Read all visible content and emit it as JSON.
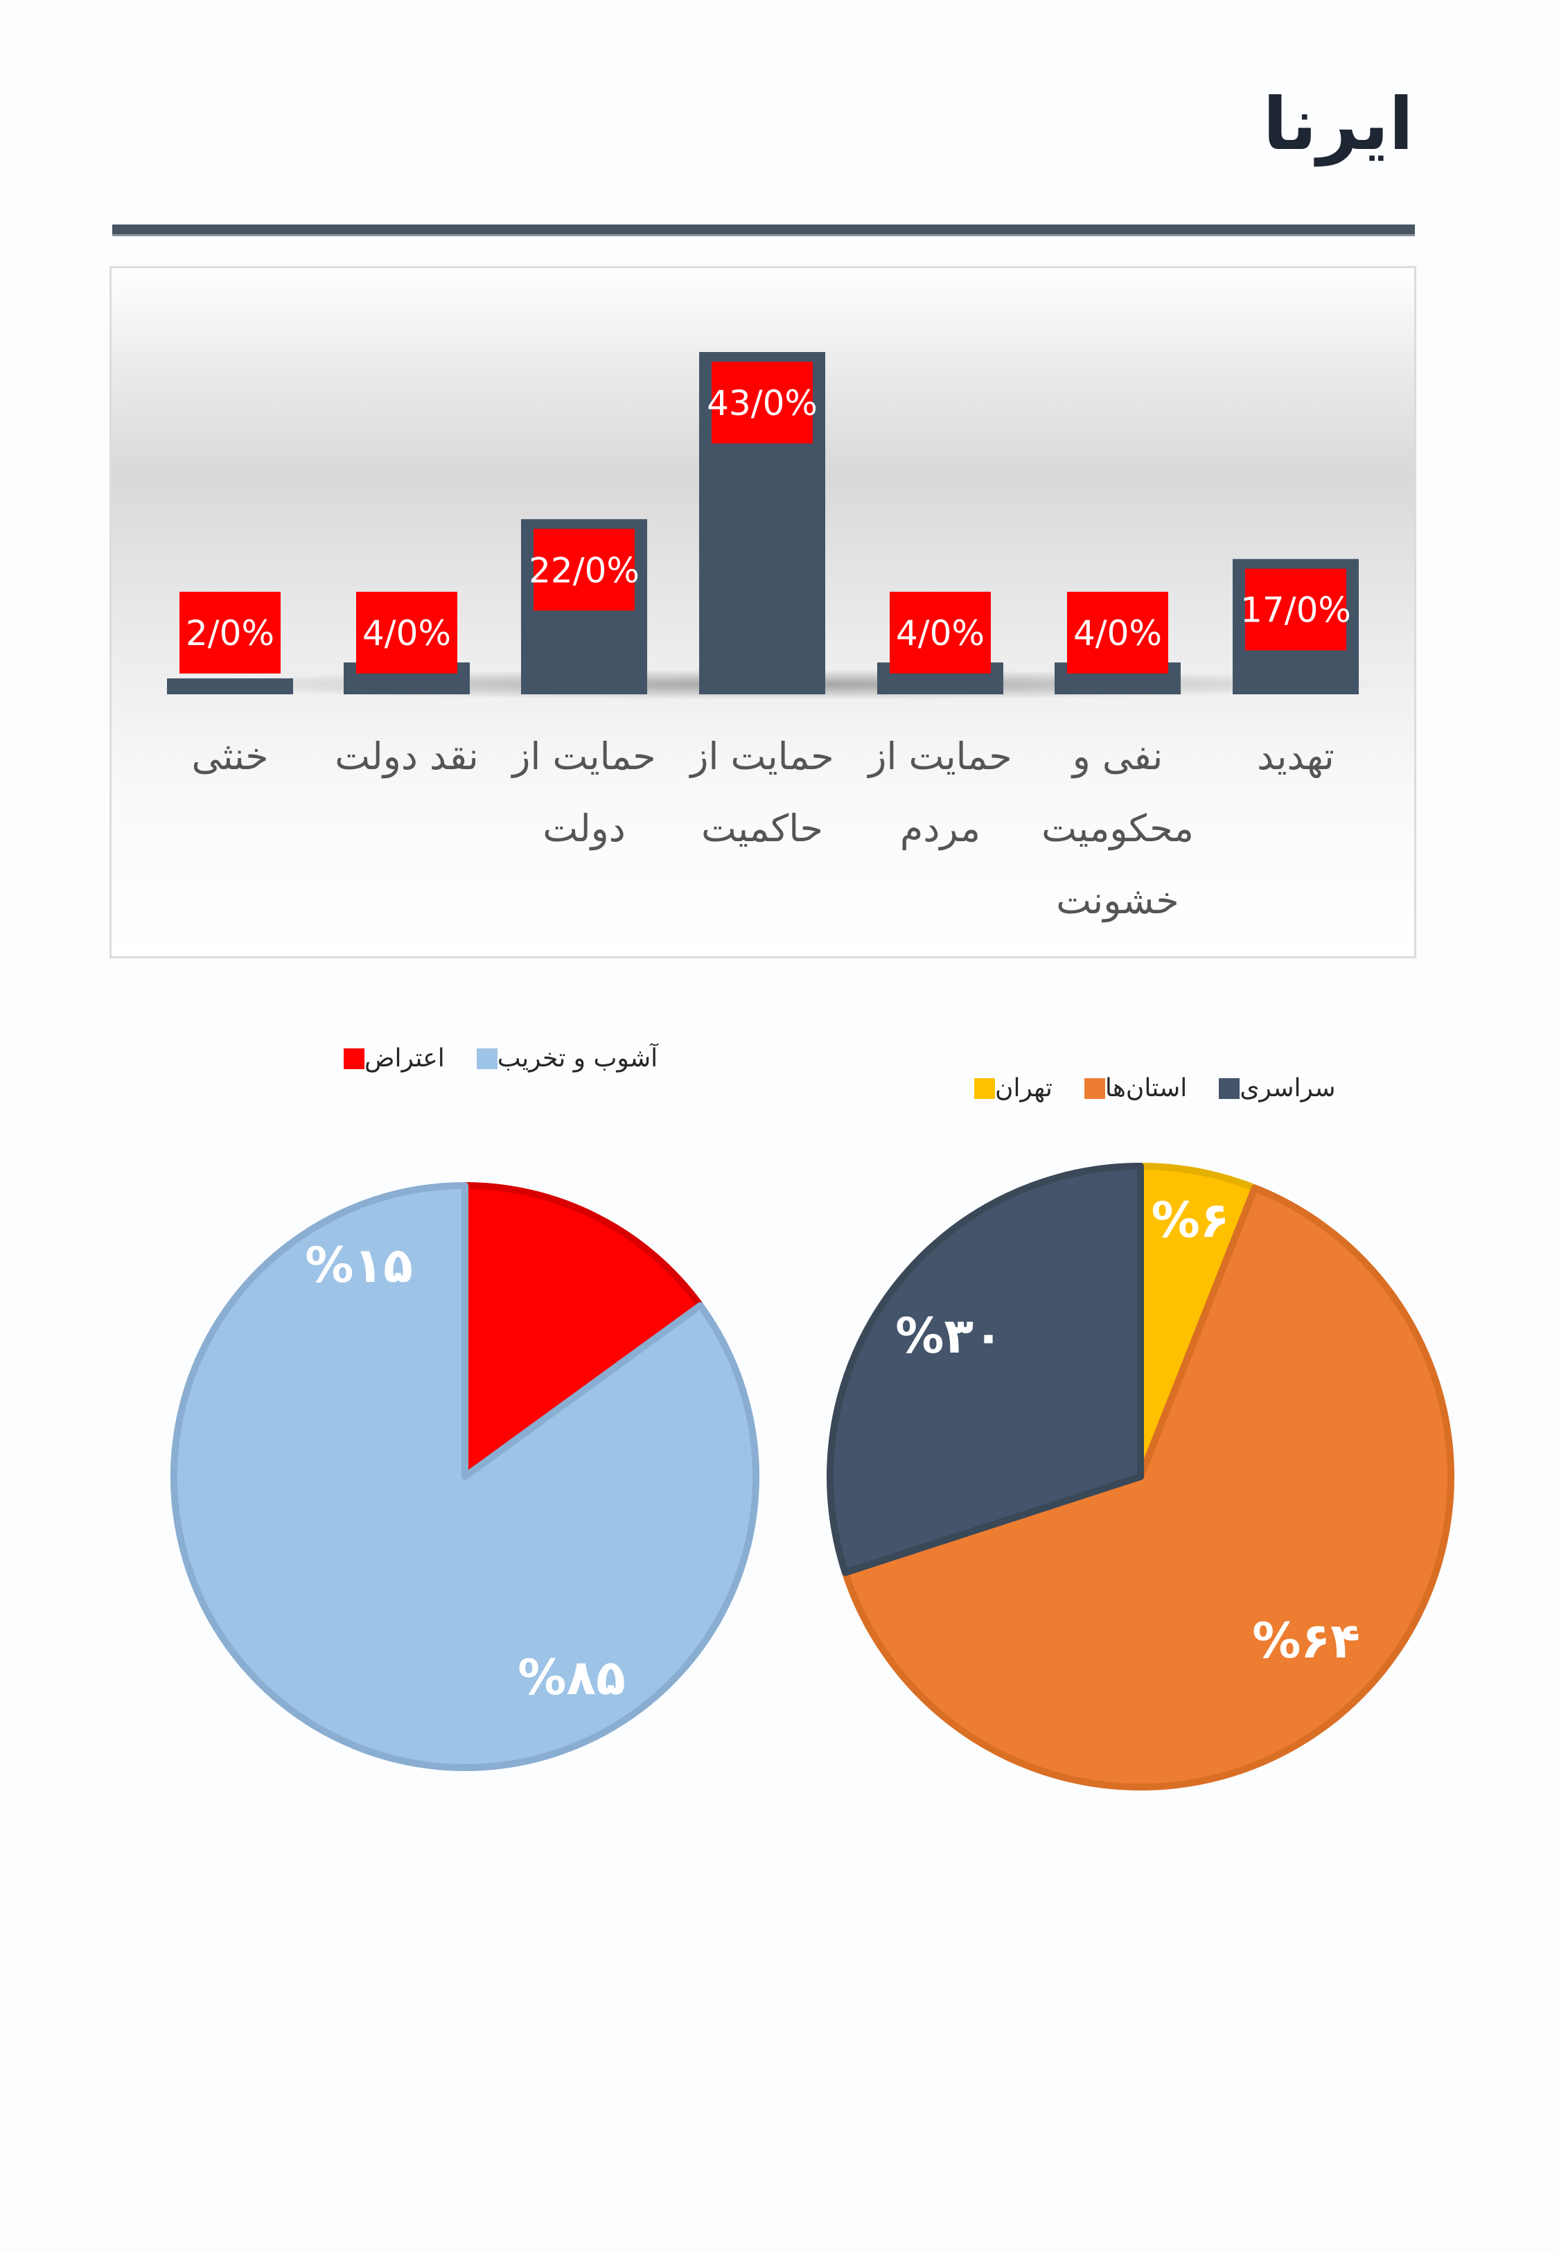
{
  "header": {
    "title": "ایرنا"
  },
  "chart_data": [
    {
      "type": "bar",
      "categories": [
        "تهدید",
        "نفی و\nمحکومیت\nخشونت",
        "حمایت از\nمردم",
        "حمایت از\nحاکمیت",
        "حمایت از\nدولت",
        "نقد دولت",
        "خنثی"
      ],
      "values": [
        17,
        4,
        4,
        43,
        22,
        4,
        2
      ],
      "data_labels": [
        "17/0%",
        "4/0%",
        "4/0%",
        "43/0%",
        "22/0%",
        "4/0%",
        "2/0%"
      ],
      "ylim": [
        0,
        50
      ],
      "grid": false,
      "colors": {
        "bar": "#435466",
        "label_bg": "#ff0000",
        "label_text": "#ffffff"
      }
    },
    {
      "type": "pie",
      "labels": [
        "تهران",
        "استان‌ها",
        "سراسری"
      ],
      "values": [
        6,
        64,
        30
      ],
      "data_labels": [
        "%۶",
        "%۶۴",
        "%۳۰"
      ],
      "colors": [
        "#ffc000",
        "#ed7d31",
        "#44546a"
      ],
      "legend_position": "top"
    },
    {
      "type": "pie",
      "labels": [
        "اعتراض",
        "آشوب و تخریب"
      ],
      "values": [
        15,
        85
      ],
      "data_labels": [
        "%۱۵",
        "%۸۵"
      ],
      "colors": [
        "#ff0000",
        "#9dc3e6"
      ],
      "legend_position": "top"
    }
  ]
}
